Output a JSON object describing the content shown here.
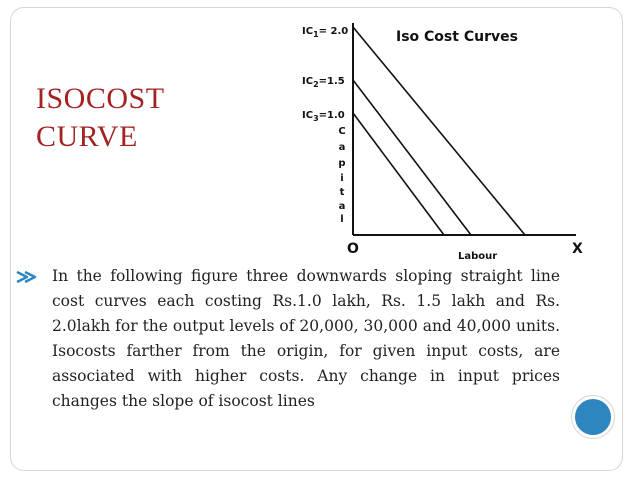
{
  "slide": {
    "title_line1": "ISOCOST",
    "title_line2": "CURVE",
    "title_color": "#a32323"
  },
  "figure": {
    "title": "Iso Cost Curves",
    "labels": {
      "ic1": "IC",
      "ic1_sub": "1",
      "ic1_value": "= 2.0",
      "ic2": "IC",
      "ic2_sub": "2",
      "ic2_value": "=1.5",
      "ic3": "IC",
      "ic3_sub": "3",
      "ic3_value": "=1.0",
      "y_axis_letters": [
        "C",
        "a",
        "p",
        "i",
        "t",
        "a",
        "l"
      ],
      "x_axis": "Labour",
      "origin": "O",
      "x_end": "X"
    }
  },
  "body": {
    "bullet_icon": "bullet-marker-icon",
    "text": "In the following figure three downwards sloping straight line cost curves each costing Rs.1.0 lakh, Rs. 1.5 lakh and Rs. 2.0lakh for the output levels of 20,000, 30,000 and 40,000 units. Isocosts farther from the origin, for given input costs, are associated with higher costs. Any change in input prices changes the slope of isocost lines"
  },
  "decoration": {
    "circle_color": "#2e86c1"
  }
}
